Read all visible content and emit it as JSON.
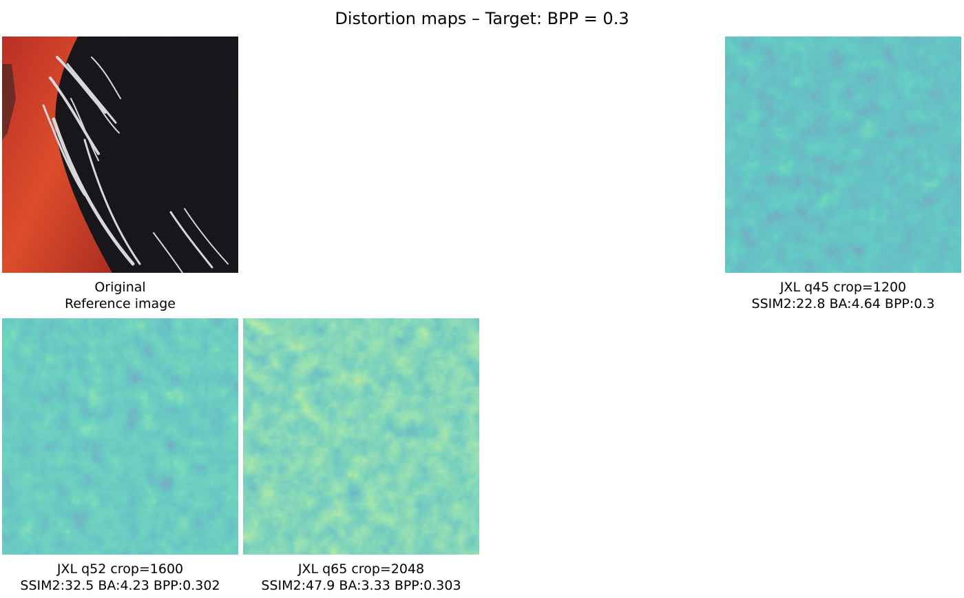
{
  "title": "Distortion maps – Target: BPP = 0.3",
  "panels": {
    "original": {
      "name": "Original",
      "subtitle": "Reference image"
    },
    "q45": {
      "name": "JXL q45 crop=1200",
      "stats": "SSIM2:22.8 BA:4.64 BPP:0.3"
    },
    "q52": {
      "name": "JXL q52 crop=1600",
      "stats": "SSIM2:32.5 BA:4.23 BPP:0.302"
    },
    "q65": {
      "name": "JXL q65 crop=2048",
      "stats": "SSIM2:47.9 BA:3.33 BPP:0.303"
    }
  },
  "colors": {
    "viridis_low": "#3b2a83",
    "viridis_mid": "#2a9a8b",
    "viridis_high": "#d6e332",
    "bird_red": "#e0381e",
    "bird_black": "#0d0b0e",
    "feather_white": "#e6e6e6"
  }
}
